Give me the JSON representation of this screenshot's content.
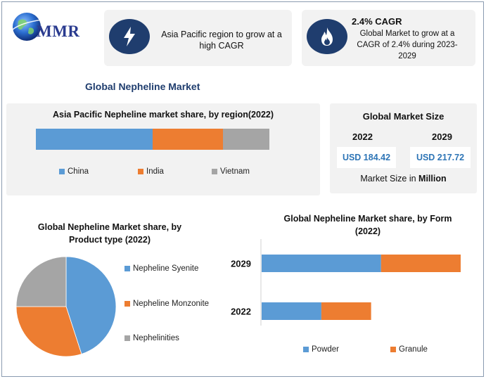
{
  "brand": {
    "name": "MMR"
  },
  "info_cards": [
    {
      "icon": "lightning-icon",
      "text": "Asia Pacific region to grow at a high CAGR"
    },
    {
      "icon": "flame-icon",
      "heading": "2.4% CAGR",
      "text": "Global Market to grow at a CAGR of 2.4% during 2023-2029"
    }
  ],
  "main_title": "Global Nepheline Market",
  "market_size": {
    "title": "Global Market Size",
    "years": [
      "2022",
      "2029"
    ],
    "values": [
      "USD 184.42",
      "USD 217.72"
    ],
    "unit_prefix": "Market Size in",
    "unit_bold": "Million"
  },
  "colors": {
    "blue": "#5b9bd5",
    "orange": "#ed7d31",
    "gray": "#a5a5a5",
    "navy": "#1f3d6e",
    "accent_text": "#2e75b6"
  },
  "chart_data": [
    {
      "type": "bar",
      "orientation": "horizontal-stacked-100",
      "title": "Asia Pacific Nepheline market share, by region(2022)",
      "categories": [
        ""
      ],
      "series": [
        {
          "name": "China",
          "values": [
            50
          ],
          "color": "#5b9bd5"
        },
        {
          "name": "India",
          "values": [
            30
          ],
          "color": "#ed7d31"
        },
        {
          "name": "Vietnam",
          "values": [
            20
          ],
          "color": "#a5a5a5"
        }
      ],
      "legend": "bottom"
    },
    {
      "type": "pie",
      "title": "Global Nepheline Market share, by Product type (2022)",
      "labels": [
        "Nepheline Syenite",
        "Nepheline Monzonite",
        "Nephelinities"
      ],
      "values": [
        45,
        30,
        25
      ],
      "colors": [
        "#5b9bd5",
        "#ed7d31",
        "#a5a5a5"
      ],
      "legend": "right"
    },
    {
      "type": "bar",
      "orientation": "horizontal-stacked",
      "title": "Global Nepheline Market share, by Form (2022)",
      "categories": [
        "2029",
        "2022"
      ],
      "series": [
        {
          "name": "Powder",
          "values": [
            60,
            30
          ],
          "color": "#5b9bd5"
        },
        {
          "name": "Granule",
          "values": [
            40,
            25
          ],
          "color": "#ed7d31"
        }
      ],
      "xlim": [
        0,
        100
      ],
      "legend": "bottom"
    }
  ]
}
